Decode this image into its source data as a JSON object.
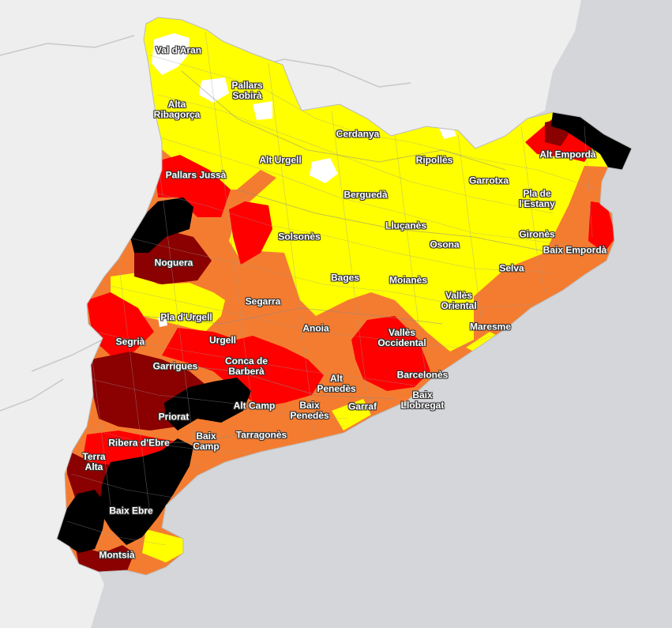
{
  "colors": {
    "sea": "#d4d6d9",
    "land_outside": "#eeeeee",
    "border_line": "#c8c8c8",
    "level_none": "#ffffff",
    "level_1": "#ffff00",
    "level_2": "#f47c30",
    "level_3": "#ff0000",
    "level_4": "#8b0000",
    "level_5": "#000000"
  },
  "labels": {
    "val_daran": "Val d'Aran",
    "pallars_sobira": "Pallars\nSobirà",
    "alta_ribagorca": "Alta\nRibagorça",
    "cerdanya": "Cerdanya",
    "alt_urgell": "Alt Urgell",
    "ripolles": "Ripollès",
    "alt_emporda": "Alt Empordà",
    "pallars_jussa": "Pallars Jussà",
    "bergueda": "Berguedà",
    "garrotxa": "Garrotxa",
    "pla_estany": "Pla de\nl'Estany",
    "llucanes": "Lluçanès",
    "solsones": "Solsonès",
    "girones": "Gironès",
    "osona": "Osona",
    "noguera": "Noguera",
    "baix_emporda": "Baix Empordà",
    "selva": "Selva",
    "bages": "Bages",
    "moianes": "Moianès",
    "segarra": "Segarra",
    "valles_oriental": "Vallès\nOriental",
    "pla_urgell": "Pla d'Urgell",
    "maresme": "Maresme",
    "anoia": "Anoia",
    "valles_occidental": "Vallès\nOccidental",
    "segria": "Segrià",
    "urgell": "Urgell",
    "garrigues": "Garrigues",
    "conca_barbera": "Conca de\nBarberà",
    "barcelones": "Barcelonès",
    "alt_penedes": "Alt\nPenedès",
    "baix_llobregat": "Baix\nLlobregat",
    "priorat": "Priorat",
    "alt_camp": "Alt Camp",
    "baix_penedes": "Baix\nPenedès",
    "garraf": "Garraf",
    "baix_camp": "Baix\nCamp",
    "tarragones": "Tarragonès",
    "ribera_ebre": "Ribera d'Ebre",
    "terra_alta": "Terra\nAlta",
    "baix_ebre": "Baix Ebre",
    "montsia": "Montsià"
  }
}
